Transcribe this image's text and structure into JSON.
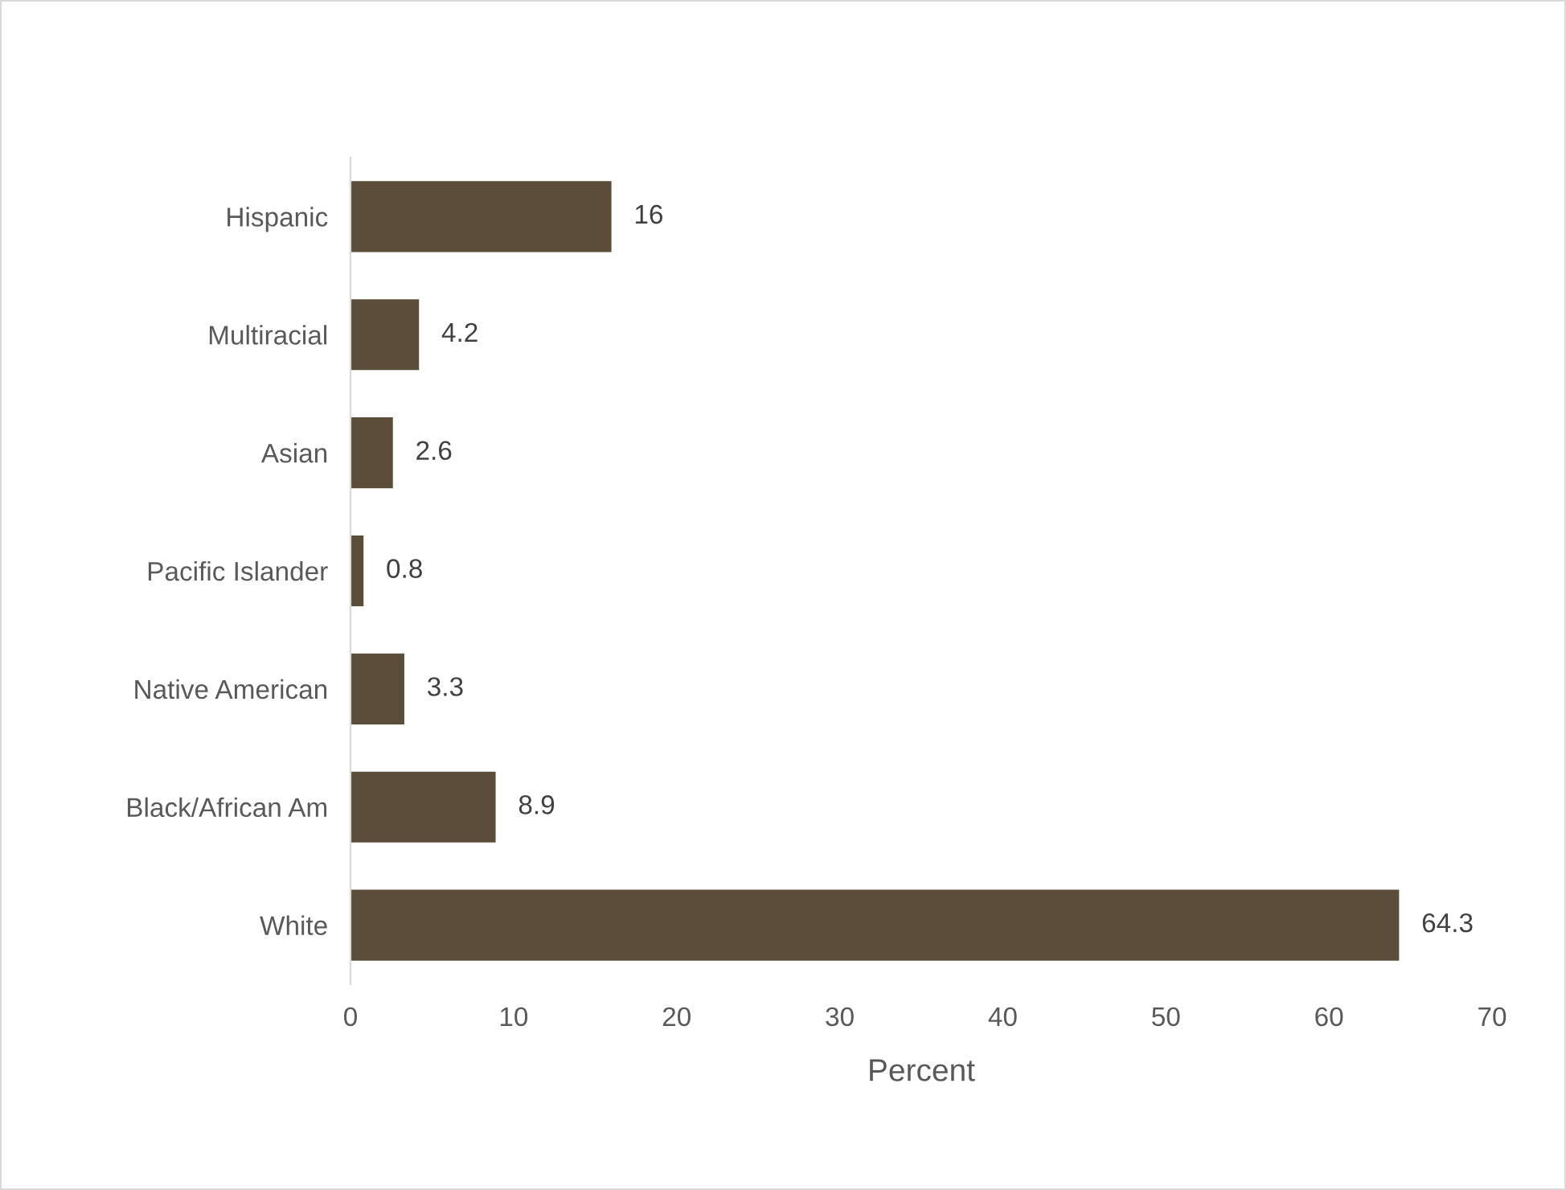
{
  "chart_data": {
    "type": "bar",
    "orientation": "horizontal",
    "xlabel": "Percent",
    "categories": [
      "Hispanic",
      "Multiracial",
      "Asian",
      "Pacific Islander",
      "Native American",
      "Black/African Am",
      "White"
    ],
    "values": [
      16,
      4.2,
      2.6,
      0.8,
      3.3,
      8.9,
      64.3
    ],
    "color": "#5c4d3a",
    "xlim": [
      0,
      70
    ],
    "xticks": [
      0,
      10,
      20,
      30,
      40,
      50,
      60,
      70
    ],
    "data_labels": true,
    "grid": false,
    "legend": false
  }
}
